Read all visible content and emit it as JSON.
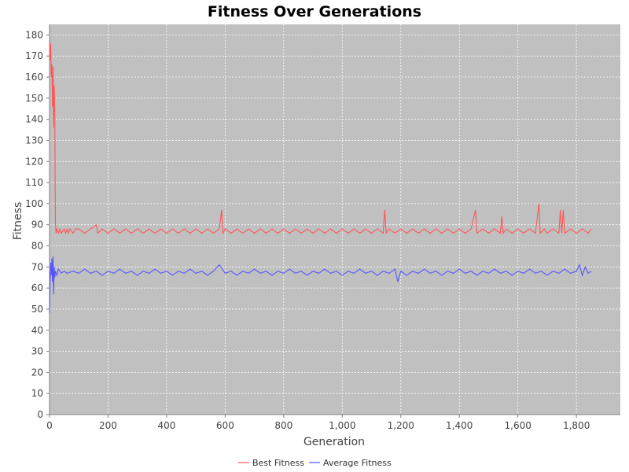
{
  "chart_data": {
    "type": "line",
    "title": "Fitness Over Generations",
    "xlabel": "Generation",
    "ylabel": "Fitness",
    "xlim": [
      0,
      1950
    ],
    "ylim": [
      0,
      185
    ],
    "x_ticks": [
      0,
      200,
      400,
      600,
      800,
      1000,
      1200,
      1400,
      1600,
      1800
    ],
    "x_tick_labels": [
      "0",
      "200",
      "400",
      "600",
      "800",
      "1,000",
      "1,200",
      "1,400",
      "1,600",
      "1,800"
    ],
    "y_ticks": [
      0,
      10,
      20,
      30,
      40,
      50,
      60,
      70,
      80,
      90,
      100,
      110,
      120,
      130,
      140,
      150,
      160,
      170,
      180
    ],
    "grid": true,
    "plot_background": "#c0c0c0",
    "grid_color": "#ffffff",
    "legend_position": "bottom",
    "series": [
      {
        "name": "Best Fitness",
        "color": "#ff5555",
        "points": [
          [
            0,
            176
          ],
          [
            2,
            168
          ],
          [
            4,
            176
          ],
          [
            6,
            160
          ],
          [
            8,
            166
          ],
          [
            10,
            146
          ],
          [
            12,
            165
          ],
          [
            14,
            136
          ],
          [
            16,
            156
          ],
          [
            18,
            141
          ],
          [
            20,
            92
          ],
          [
            22,
            86
          ],
          [
            25,
            88
          ],
          [
            30,
            86
          ],
          [
            35,
            88
          ],
          [
            40,
            86
          ],
          [
            50,
            88
          ],
          [
            55,
            86
          ],
          [
            60,
            88
          ],
          [
            65,
            86
          ],
          [
            70,
            88
          ],
          [
            80,
            86
          ],
          [
            90,
            88
          ],
          [
            100,
            88
          ],
          [
            120,
            86
          ],
          [
            140,
            88
          ],
          [
            160,
            90
          ],
          [
            165,
            86
          ],
          [
            180,
            88
          ],
          [
            200,
            86
          ],
          [
            220,
            88
          ],
          [
            240,
            86
          ],
          [
            260,
            88
          ],
          [
            280,
            86
          ],
          [
            300,
            88
          ],
          [
            320,
            86
          ],
          [
            340,
            88
          ],
          [
            360,
            86
          ],
          [
            380,
            88
          ],
          [
            400,
            86
          ],
          [
            420,
            88
          ],
          [
            440,
            86
          ],
          [
            460,
            88
          ],
          [
            480,
            86
          ],
          [
            500,
            88
          ],
          [
            520,
            86
          ],
          [
            540,
            88
          ],
          [
            560,
            86
          ],
          [
            580,
            88
          ],
          [
            588,
            97
          ],
          [
            592,
            86
          ],
          [
            600,
            88
          ],
          [
            620,
            86
          ],
          [
            640,
            88
          ],
          [
            660,
            86
          ],
          [
            680,
            88
          ],
          [
            700,
            86
          ],
          [
            720,
            88
          ],
          [
            740,
            86
          ],
          [
            760,
            88
          ],
          [
            780,
            86
          ],
          [
            800,
            88
          ],
          [
            820,
            86
          ],
          [
            840,
            88
          ],
          [
            860,
            86
          ],
          [
            880,
            88
          ],
          [
            900,
            86
          ],
          [
            920,
            88
          ],
          [
            940,
            86
          ],
          [
            960,
            88
          ],
          [
            980,
            86
          ],
          [
            1000,
            88
          ],
          [
            1020,
            86
          ],
          [
            1040,
            88
          ],
          [
            1060,
            86
          ],
          [
            1080,
            88
          ],
          [
            1100,
            86
          ],
          [
            1120,
            88
          ],
          [
            1140,
            86
          ],
          [
            1145,
            97
          ],
          [
            1150,
            86
          ],
          [
            1160,
            88
          ],
          [
            1180,
            86
          ],
          [
            1200,
            88
          ],
          [
            1220,
            86
          ],
          [
            1240,
            88
          ],
          [
            1260,
            86
          ],
          [
            1280,
            88
          ],
          [
            1300,
            86
          ],
          [
            1320,
            88
          ],
          [
            1340,
            86
          ],
          [
            1360,
            88
          ],
          [
            1380,
            86
          ],
          [
            1400,
            88
          ],
          [
            1420,
            86
          ],
          [
            1440,
            88
          ],
          [
            1455,
            97
          ],
          [
            1460,
            86
          ],
          [
            1480,
            88
          ],
          [
            1500,
            86
          ],
          [
            1520,
            88
          ],
          [
            1540,
            86
          ],
          [
            1545,
            94
          ],
          [
            1550,
            86
          ],
          [
            1560,
            88
          ],
          [
            1580,
            86
          ],
          [
            1600,
            88
          ],
          [
            1620,
            86
          ],
          [
            1640,
            88
          ],
          [
            1660,
            86
          ],
          [
            1672,
            100
          ],
          [
            1676,
            86
          ],
          [
            1690,
            88
          ],
          [
            1700,
            86
          ],
          [
            1720,
            88
          ],
          [
            1740,
            86
          ],
          [
            1745,
            97
          ],
          [
            1750,
            86
          ],
          [
            1755,
            97
          ],
          [
            1760,
            86
          ],
          [
            1780,
            88
          ],
          [
            1800,
            86
          ],
          [
            1820,
            88
          ],
          [
            1840,
            86
          ],
          [
            1850,
            88
          ]
        ]
      },
      {
        "name": "Average Fitness",
        "color": "#5555ff",
        "points": [
          [
            0,
            48
          ],
          [
            2,
            62
          ],
          [
            4,
            72
          ],
          [
            6,
            66
          ],
          [
            8,
            74
          ],
          [
            10,
            63
          ],
          [
            12,
            75
          ],
          [
            14,
            57
          ],
          [
            16,
            70
          ],
          [
            18,
            65
          ],
          [
            20,
            68
          ],
          [
            25,
            66
          ],
          [
            30,
            69
          ],
          [
            40,
            67
          ],
          [
            50,
            68
          ],
          [
            60,
            67
          ],
          [
            80,
            68
          ],
          [
            100,
            67
          ],
          [
            120,
            69
          ],
          [
            140,
            67
          ],
          [
            160,
            68
          ],
          [
            180,
            66
          ],
          [
            200,
            68
          ],
          [
            220,
            67
          ],
          [
            240,
            69
          ],
          [
            260,
            67
          ],
          [
            280,
            68
          ],
          [
            300,
            66
          ],
          [
            320,
            68
          ],
          [
            340,
            67
          ],
          [
            360,
            69
          ],
          [
            380,
            67
          ],
          [
            400,
            68
          ],
          [
            420,
            66
          ],
          [
            440,
            68
          ],
          [
            460,
            67
          ],
          [
            480,
            69
          ],
          [
            500,
            67
          ],
          [
            520,
            68
          ],
          [
            540,
            66
          ],
          [
            560,
            68
          ],
          [
            580,
            71
          ],
          [
            600,
            67
          ],
          [
            620,
            68
          ],
          [
            640,
            66
          ],
          [
            660,
            68
          ],
          [
            680,
            67
          ],
          [
            700,
            69
          ],
          [
            720,
            67
          ],
          [
            740,
            68
          ],
          [
            760,
            66
          ],
          [
            780,
            68
          ],
          [
            800,
            67
          ],
          [
            820,
            69
          ],
          [
            840,
            67
          ],
          [
            860,
            68
          ],
          [
            880,
            66
          ],
          [
            900,
            68
          ],
          [
            920,
            67
          ],
          [
            940,
            69
          ],
          [
            960,
            67
          ],
          [
            980,
            68
          ],
          [
            1000,
            66
          ],
          [
            1020,
            68
          ],
          [
            1040,
            67
          ],
          [
            1060,
            69
          ],
          [
            1080,
            67
          ],
          [
            1100,
            68
          ],
          [
            1120,
            66
          ],
          [
            1140,
            68
          ],
          [
            1160,
            67
          ],
          [
            1180,
            69
          ],
          [
            1190,
            63
          ],
          [
            1200,
            68
          ],
          [
            1220,
            66
          ],
          [
            1240,
            68
          ],
          [
            1260,
            67
          ],
          [
            1280,
            69
          ],
          [
            1300,
            67
          ],
          [
            1320,
            68
          ],
          [
            1340,
            66
          ],
          [
            1360,
            68
          ],
          [
            1380,
            67
          ],
          [
            1400,
            69
          ],
          [
            1420,
            67
          ],
          [
            1440,
            68
          ],
          [
            1460,
            66
          ],
          [
            1480,
            68
          ],
          [
            1500,
            67
          ],
          [
            1520,
            69
          ],
          [
            1540,
            67
          ],
          [
            1560,
            68
          ],
          [
            1580,
            66
          ],
          [
            1600,
            68
          ],
          [
            1620,
            67
          ],
          [
            1640,
            69
          ],
          [
            1660,
            67
          ],
          [
            1680,
            68
          ],
          [
            1700,
            66
          ],
          [
            1720,
            68
          ],
          [
            1740,
            67
          ],
          [
            1760,
            69
          ],
          [
            1780,
            67
          ],
          [
            1800,
            68
          ],
          [
            1810,
            71
          ],
          [
            1820,
            66
          ],
          [
            1830,
            70
          ],
          [
            1840,
            67
          ],
          [
            1850,
            68
          ]
        ]
      }
    ]
  }
}
